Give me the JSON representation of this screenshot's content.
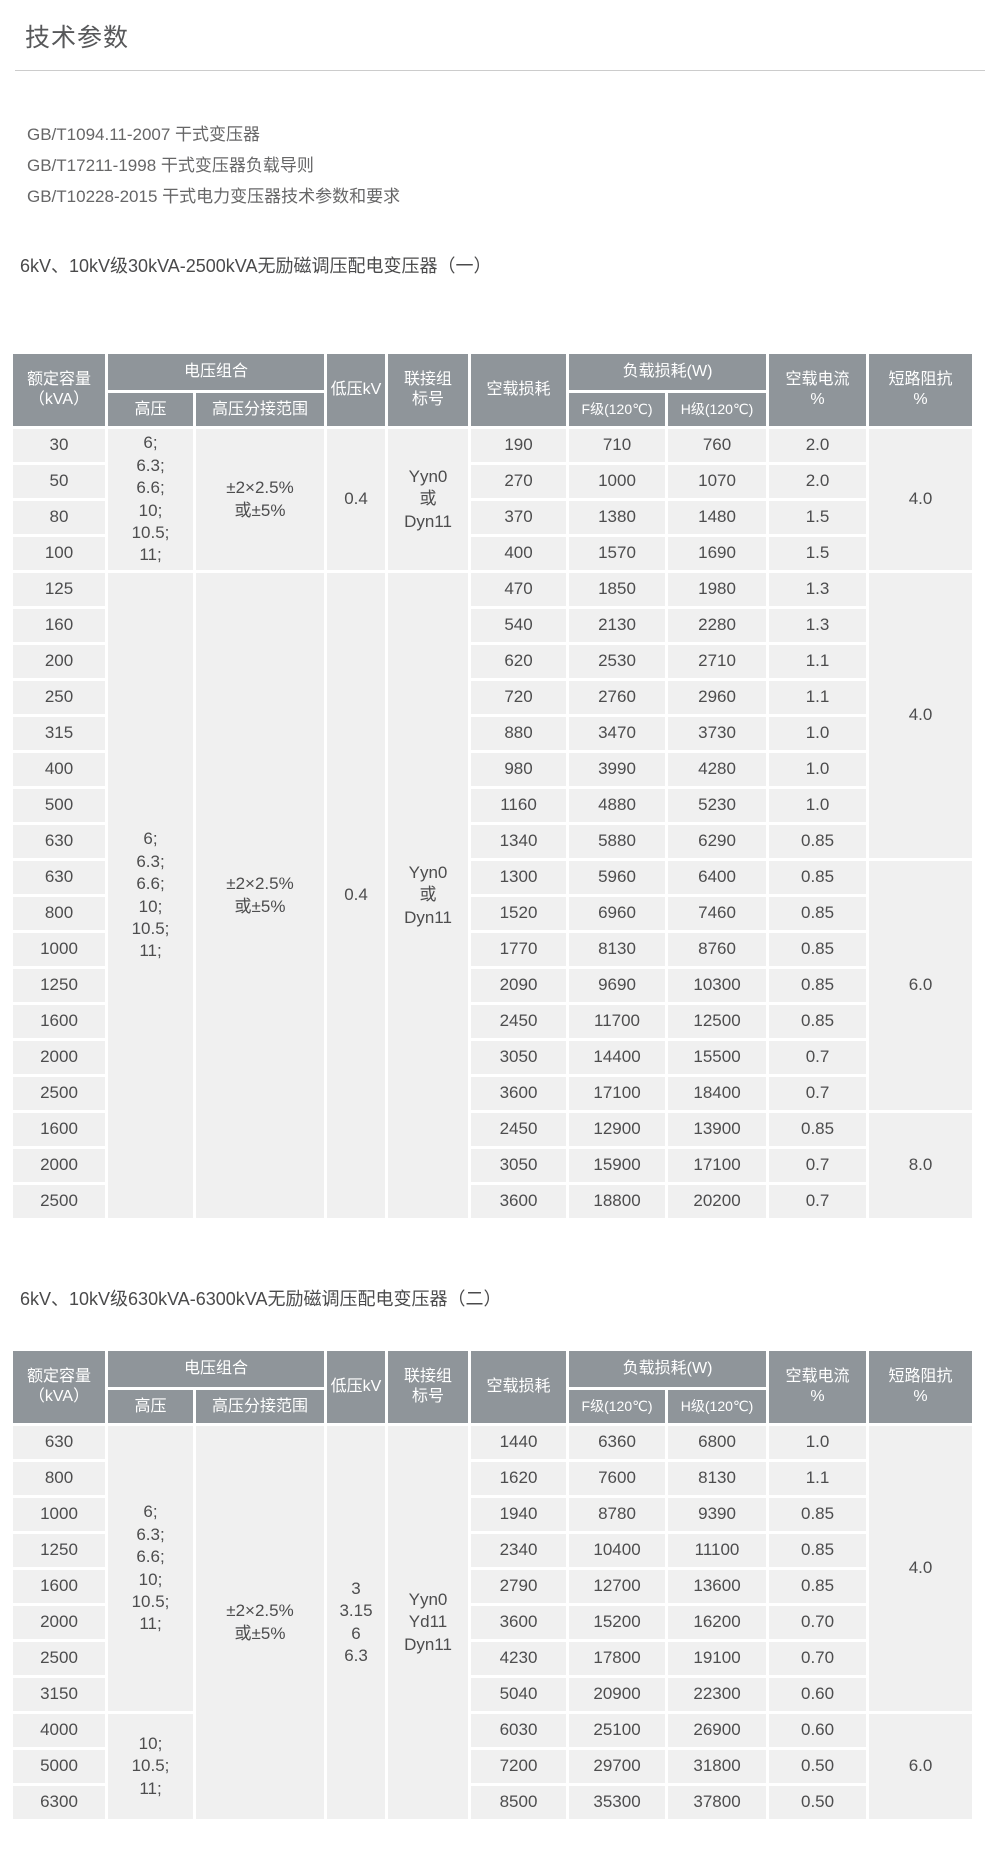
{
  "page": {
    "title": "技术参数",
    "standards": [
      "GB/T1094.11-2007 干式变压器",
      "GB/T17211-1998 干式变压器负载导则",
      "GB/T10228-2015 干式电力变压器技术参数和要求"
    ]
  },
  "table_header": {
    "capacity": "额定容量\n（kVA）",
    "voltage_combo": "电压组合",
    "hv": "高压",
    "hv_tap_range": "高压分接范围",
    "lv": "低压kV",
    "vector_group": "联接组\n标号",
    "no_load_loss": "空载损耗",
    "load_loss": "负载损耗(W)",
    "f_class": "F级(120℃)",
    "h_class": "H级(120℃)",
    "no_load_current": "空载电流\n%",
    "impedance": "短路阻抗\n%"
  },
  "tables": [
    {
      "title": "6kV、10kV级30kVA-2500kVA无励磁调压配电变压器（一）",
      "rows": [
        [
          {
            "t": "30"
          },
          {
            "t": "6;\n6.3;\n6.6;\n10;\n10.5;\n11;",
            "rs": 4
          },
          {
            "t": "±2×2.5%\n或±5%",
            "rs": 4
          },
          {
            "t": "0.4",
            "rs": 4
          },
          {
            "t": "Yyn0\n或\nDyn11",
            "rs": 4
          },
          {
            "t": "190"
          },
          {
            "t": "710"
          },
          {
            "t": "760"
          },
          {
            "t": "2.0"
          },
          {
            "t": "4.0",
            "rs": 4
          }
        ],
        [
          {
            "t": "50"
          },
          {
            "t": "270"
          },
          {
            "t": "1000"
          },
          {
            "t": "1070"
          },
          {
            "t": "2.0"
          }
        ],
        [
          {
            "t": "80"
          },
          {
            "t": "370"
          },
          {
            "t": "1380"
          },
          {
            "t": "1480"
          },
          {
            "t": "1.5"
          }
        ],
        [
          {
            "t": "100"
          },
          {
            "t": "400"
          },
          {
            "t": "1570"
          },
          {
            "t": "1690"
          },
          {
            "t": "1.5"
          }
        ],
        [
          {
            "t": "125"
          },
          {
            "t": "6;\n6.3;\n6.6;\n10;\n10.5;\n11;",
            "rs": 18
          },
          {
            "t": "±2×2.5%\n或±5%",
            "rs": 18
          },
          {
            "t": "0.4",
            "rs": 18
          },
          {
            "t": "Yyn0\n或\nDyn11",
            "rs": 18
          },
          {
            "t": "470"
          },
          {
            "t": "1850"
          },
          {
            "t": "1980"
          },
          {
            "t": "1.3"
          },
          {
            "t": "4.0",
            "rs": 8
          }
        ],
        [
          {
            "t": "160"
          },
          {
            "t": "540"
          },
          {
            "t": "2130"
          },
          {
            "t": "2280"
          },
          {
            "t": "1.3"
          }
        ],
        [
          {
            "t": "200"
          },
          {
            "t": "620"
          },
          {
            "t": "2530"
          },
          {
            "t": "2710"
          },
          {
            "t": "1.1"
          }
        ],
        [
          {
            "t": "250"
          },
          {
            "t": "720"
          },
          {
            "t": "2760"
          },
          {
            "t": "2960"
          },
          {
            "t": "1.1"
          }
        ],
        [
          {
            "t": "315"
          },
          {
            "t": "880"
          },
          {
            "t": "3470"
          },
          {
            "t": "3730"
          },
          {
            "t": "1.0"
          }
        ],
        [
          {
            "t": "400"
          },
          {
            "t": "980"
          },
          {
            "t": "3990"
          },
          {
            "t": "4280"
          },
          {
            "t": "1.0"
          }
        ],
        [
          {
            "t": "500"
          },
          {
            "t": "1160"
          },
          {
            "t": "4880"
          },
          {
            "t": "5230"
          },
          {
            "t": "1.0"
          }
        ],
        [
          {
            "t": "630"
          },
          {
            "t": "1340"
          },
          {
            "t": "5880"
          },
          {
            "t": "6290"
          },
          {
            "t": "0.85"
          }
        ],
        [
          {
            "t": "630"
          },
          {
            "t": "1300"
          },
          {
            "t": "5960"
          },
          {
            "t": "6400"
          },
          {
            "t": "0.85"
          },
          {
            "t": "6.0",
            "rs": 7
          }
        ],
        [
          {
            "t": "800"
          },
          {
            "t": "1520"
          },
          {
            "t": "6960"
          },
          {
            "t": "7460"
          },
          {
            "t": "0.85"
          }
        ],
        [
          {
            "t": "1000"
          },
          {
            "t": "1770"
          },
          {
            "t": "8130"
          },
          {
            "t": "8760"
          },
          {
            "t": "0.85"
          }
        ],
        [
          {
            "t": "1250"
          },
          {
            "t": "2090"
          },
          {
            "t": "9690"
          },
          {
            "t": "10300"
          },
          {
            "t": "0.85"
          }
        ],
        [
          {
            "t": "1600"
          },
          {
            "t": "2450"
          },
          {
            "t": "11700"
          },
          {
            "t": "12500"
          },
          {
            "t": "0.85"
          }
        ],
        [
          {
            "t": "2000"
          },
          {
            "t": "3050"
          },
          {
            "t": "14400"
          },
          {
            "t": "15500"
          },
          {
            "t": "0.7"
          }
        ],
        [
          {
            "t": "2500"
          },
          {
            "t": "3600"
          },
          {
            "t": "17100"
          },
          {
            "t": "18400"
          },
          {
            "t": "0.7"
          }
        ],
        [
          {
            "t": "1600"
          },
          {
            "t": "2450"
          },
          {
            "t": "12900"
          },
          {
            "t": "13900"
          },
          {
            "t": "0.85"
          },
          {
            "t": "8.0",
            "rs": 3
          }
        ],
        [
          {
            "t": "2000"
          },
          {
            "t": "3050"
          },
          {
            "t": "15900"
          },
          {
            "t": "17100"
          },
          {
            "t": "0.7"
          }
        ],
        [
          {
            "t": "2500"
          },
          {
            "t": "3600"
          },
          {
            "t": "18800"
          },
          {
            "t": "20200"
          },
          {
            "t": "0.7"
          }
        ]
      ]
    },
    {
      "title": "6kV、10kV级630kVA-6300kVA无励磁调压配电变压器（二）",
      "rows": [
        [
          {
            "t": "630"
          },
          {
            "t": "6;\n6.3;\n6.6;\n10;\n10.5;\n11;",
            "rs": 8
          },
          {
            "t": "±2×2.5%\n或±5%",
            "rs": 11
          },
          {
            "t": "3\n3.15\n6\n6.3",
            "rs": 11
          },
          {
            "t": "Yyn0\nYd11\nDyn11",
            "rs": 11
          },
          {
            "t": "1440"
          },
          {
            "t": "6360"
          },
          {
            "t": "6800"
          },
          {
            "t": "1.0"
          },
          {
            "t": "4.0",
            "rs": 8
          }
        ],
        [
          {
            "t": "800"
          },
          {
            "t": "1620"
          },
          {
            "t": "7600"
          },
          {
            "t": "8130"
          },
          {
            "t": "1.1"
          }
        ],
        [
          {
            "t": "1000"
          },
          {
            "t": "1940"
          },
          {
            "t": "8780"
          },
          {
            "t": "9390"
          },
          {
            "t": "0.85"
          }
        ],
        [
          {
            "t": "1250"
          },
          {
            "t": "2340"
          },
          {
            "t": "10400"
          },
          {
            "t": "11100"
          },
          {
            "t": "0.85"
          }
        ],
        [
          {
            "t": "1600"
          },
          {
            "t": "2790"
          },
          {
            "t": "12700"
          },
          {
            "t": "13600"
          },
          {
            "t": "0.85"
          }
        ],
        [
          {
            "t": "2000"
          },
          {
            "t": "3600"
          },
          {
            "t": "15200"
          },
          {
            "t": "16200"
          },
          {
            "t": "0.70"
          }
        ],
        [
          {
            "t": "2500"
          },
          {
            "t": "4230"
          },
          {
            "t": "17800"
          },
          {
            "t": "19100"
          },
          {
            "t": "0.70"
          }
        ],
        [
          {
            "t": "3150"
          },
          {
            "t": "5040"
          },
          {
            "t": "20900"
          },
          {
            "t": "22300"
          },
          {
            "t": "0.60"
          }
        ],
        [
          {
            "t": "4000"
          },
          {
            "t": "10;\n10.5;\n11;",
            "rs": 3
          },
          {
            "t": "6030"
          },
          {
            "t": "25100"
          },
          {
            "t": "26900"
          },
          {
            "t": "0.60"
          },
          {
            "t": "6.0",
            "rs": 3
          }
        ],
        [
          {
            "t": "5000"
          },
          {
            "t": "7200"
          },
          {
            "t": "29700"
          },
          {
            "t": "31800"
          },
          {
            "t": "0.50"
          }
        ],
        [
          {
            "t": "6300"
          },
          {
            "t": "8500"
          },
          {
            "t": "35300"
          },
          {
            "t": "37800"
          },
          {
            "t": "0.50"
          }
        ]
      ]
    }
  ]
}
